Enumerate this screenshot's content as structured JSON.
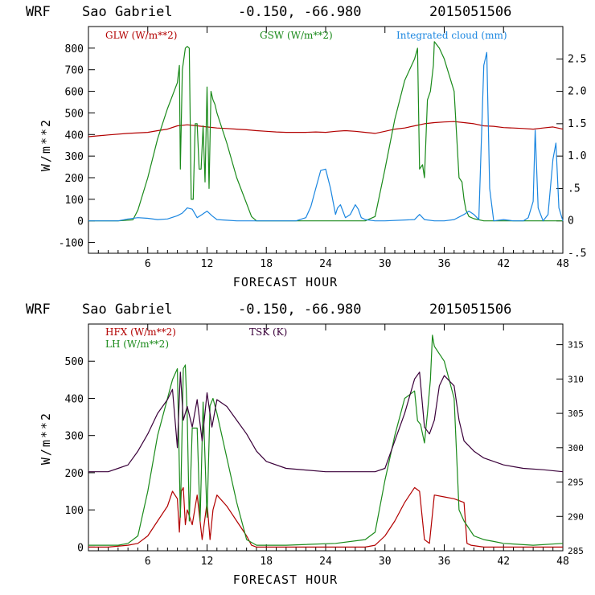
{
  "colors": {
    "red": "#b20000",
    "green": "#1a8a1a",
    "blue": "#1a86e0",
    "purple": "#3a003a",
    "axis": "#000000"
  },
  "chart_data": [
    {
      "type": "line",
      "header": {
        "model": "WRF",
        "location": "Sao Gabriel",
        "coords": "-0.150, -66.980",
        "run": "2015051506"
      },
      "xlabel": "FORECAST HOUR",
      "ylabel": "W/m**2",
      "xlim": [
        0,
        48
      ],
      "ylim": [
        -150,
        900
      ],
      "y2lim": [
        -0.5,
        3.0
      ],
      "xticks": [
        "6",
        "12",
        "18",
        "24",
        "30",
        "36",
        "42",
        "48"
      ],
      "yticks": [
        "-100",
        "0",
        "100",
        "200",
        "300",
        "400",
        "500",
        "600",
        "700",
        "800"
      ],
      "y2ticks": [
        "-.5",
        "0",
        ".5",
        "1.0",
        "1.5",
        "2.0",
        "2.5"
      ],
      "series": [
        {
          "name": "GLW (W/m**2)",
          "axis": "left",
          "color": "red",
          "x": [
            0,
            2,
            4,
            6,
            7,
            8,
            9,
            10,
            11,
            12,
            13,
            14,
            15,
            16,
            17,
            18,
            19,
            20,
            21,
            22,
            23,
            24,
            25,
            26,
            27,
            28,
            29,
            30,
            31,
            32,
            33,
            34,
            35,
            36,
            37,
            38,
            39,
            40,
            41,
            42,
            43,
            44,
            45,
            46,
            47,
            48
          ],
          "y": [
            390,
            398,
            405,
            410,
            418,
            425,
            440,
            445,
            440,
            435,
            430,
            428,
            425,
            422,
            418,
            415,
            412,
            410,
            410,
            410,
            412,
            410,
            415,
            418,
            415,
            410,
            405,
            415,
            425,
            430,
            440,
            450,
            455,
            458,
            460,
            455,
            450,
            440,
            438,
            432,
            430,
            428,
            425,
            430,
            435,
            425
          ]
        },
        {
          "name": "GSW (W/m**2)",
          "axis": "left",
          "color": "green",
          "x": [
            0,
            3,
            4.5,
            5,
            6,
            7,
            8,
            9,
            9.2,
            9.3,
            9.5,
            9.8,
            10,
            10.2,
            10.4,
            10.6,
            10.8,
            11,
            11.2,
            11.4,
            11.6,
            11.8,
            12,
            12.2,
            12.4,
            12.6,
            12.8,
            13,
            14,
            15,
            16,
            16.5,
            17,
            20,
            25,
            28,
            29,
            30,
            31,
            32,
            33,
            33.3,
            33.5,
            33.8,
            34,
            34.3,
            34.6,
            34.9,
            35,
            35.5,
            36,
            37,
            37.5,
            37.8,
            38,
            38.2,
            38.5,
            39,
            40,
            48
          ],
          "y": [
            0,
            0,
            5,
            50,
            200,
            380,
            520,
            640,
            720,
            240,
            700,
            800,
            808,
            800,
            100,
            100,
            450,
            450,
            240,
            240,
            440,
            180,
            620,
            150,
            600,
            560,
            540,
            500,
            360,
            200,
            80,
            20,
            0,
            0,
            0,
            0,
            20,
            240,
            470,
            650,
            750,
            800,
            240,
            260,
            200,
            560,
            600,
            720,
            830,
            800,
            750,
            600,
            200,
            180,
            100,
            50,
            20,
            10,
            0,
            0
          ]
        },
        {
          "name": "Integrated cloud (mm)",
          "axis": "right",
          "color": "blue",
          "x": [
            0,
            3,
            4,
            5,
            6,
            7,
            8,
            9,
            9.5,
            10,
            10.5,
            11,
            11.5,
            12,
            12.5,
            13,
            14,
            15,
            16,
            18,
            20,
            21,
            22,
            22.5,
            23,
            23.5,
            24,
            24.5,
            25,
            25.2,
            25.5,
            26,
            26.5,
            27,
            27.3,
            27.6,
            28,
            29,
            30,
            33,
            33.5,
            34,
            35,
            36,
            37,
            38,
            38.5,
            39,
            39.5,
            40,
            40.3,
            40.6,
            41,
            42,
            43,
            44,
            44.5,
            45,
            45.2,
            45.5,
            46,
            46.5,
            47,
            47.3,
            47.6,
            48
          ],
          "y": [
            0,
            0,
            0.03,
            0.05,
            0.04,
            0.02,
            0.03,
            0.08,
            0.12,
            0.2,
            0.18,
            0.05,
            0.1,
            0.15,
            0.08,
            0.02,
            0.01,
            0,
            0,
            0,
            0,
            0,
            0.05,
            0.22,
            0.5,
            0.78,
            0.8,
            0.5,
            0.1,
            0.2,
            0.25,
            0.05,
            0.1,
            0.25,
            0.18,
            0.05,
            0.02,
            0,
            0,
            0.02,
            0.1,
            0.02,
            0,
            0,
            0.02,
            0.1,
            0.15,
            0.1,
            0.02,
            2.4,
            2.6,
            0.5,
            0,
            0.02,
            0,
            0,
            0.05,
            0.3,
            1.4,
            0.2,
            0,
            0.1,
            0.95,
            1.2,
            0.2,
            0
          ]
        }
      ]
    },
    {
      "type": "line",
      "header": {
        "model": "WRF",
        "location": "Sao Gabriel",
        "coords": "-0.150, -66.980",
        "run": "2015051506"
      },
      "xlabel": "FORECAST HOUR",
      "ylabel": "W/m**2",
      "xlim": [
        0,
        48
      ],
      "ylim": [
        -10,
        600
      ],
      "y2lim": [
        285,
        318
      ],
      "xticks": [
        "6",
        "12",
        "18",
        "24",
        "30",
        "36",
        "42",
        "48"
      ],
      "yticks": [
        "0",
        "100",
        "200",
        "300",
        "400",
        "500"
      ],
      "y2ticks": [
        "285",
        "290",
        "295",
        "300",
        "305",
        "310",
        "315"
      ],
      "series": [
        {
          "name": "HFX (W/m**2)",
          "axis": "left",
          "color": "red",
          "x": [
            0,
            2,
            4,
            5,
            6,
            7,
            8,
            8.5,
            9,
            9.2,
            9.4,
            9.6,
            9.8,
            10,
            10.5,
            11,
            11.5,
            12,
            12.3,
            12.6,
            13,
            14,
            15,
            16,
            16.5,
            17,
            20,
            25,
            28,
            29,
            30,
            31,
            32,
            33,
            33.5,
            34,
            34.5,
            35,
            36,
            37,
            38,
            38.3,
            38.7,
            40,
            44,
            48
          ],
          "y": [
            0,
            0,
            5,
            10,
            30,
            70,
            110,
            150,
            130,
            40,
            150,
            160,
            60,
            100,
            60,
            140,
            20,
            120,
            20,
            100,
            140,
            110,
            70,
            30,
            5,
            0,
            0,
            0,
            0,
            5,
            30,
            70,
            120,
            160,
            150,
            20,
            10,
            140,
            135,
            130,
            120,
            10,
            5,
            0,
            0,
            0
          ]
        },
        {
          "name": "LH (W/m**2)",
          "axis": "left",
          "color": "green",
          "x": [
            0,
            3,
            4,
            5,
            6,
            7,
            8,
            8.5,
            9,
            9.3,
            9.6,
            9.8,
            10,
            10.2,
            10.5,
            11,
            11.3,
            11.6,
            12,
            12.3,
            12.6,
            13,
            14,
            15,
            16,
            17,
            20,
            25,
            28,
            29,
            30,
            31,
            32,
            33,
            33.3,
            33.6,
            34,
            34.3,
            34.6,
            34.8,
            35,
            36,
            37,
            37.5,
            38,
            39,
            40,
            41,
            42,
            45,
            48
          ],
          "y": [
            5,
            5,
            10,
            30,
            150,
            300,
            400,
            450,
            480,
            80,
            480,
            490,
            350,
            70,
            320,
            320,
            70,
            390,
            80,
            380,
            400,
            360,
            240,
            120,
            20,
            5,
            5,
            10,
            20,
            40,
            180,
            300,
            400,
            420,
            340,
            330,
            280,
            360,
            450,
            570,
            540,
            500,
            400,
            100,
            70,
            30,
            20,
            15,
            10,
            5,
            10
          ]
        },
        {
          "name": "TSK (K)",
          "axis": "right",
          "color": "purple",
          "x": [
            0,
            2,
            3,
            4,
            5,
            6,
            7,
            8,
            8.5,
            9,
            9.3,
            9.6,
            10,
            10.5,
            11,
            11.5,
            12,
            12.5,
            13,
            14,
            15,
            16,
            17,
            18,
            20,
            24,
            27,
            29,
            30,
            31,
            32,
            33,
            33.5,
            34,
            34.5,
            35,
            35.5,
            36,
            37,
            37.5,
            38,
            39,
            40,
            42,
            44,
            46,
            48
          ],
          "y": [
            296.5,
            296.5,
            297,
            297.5,
            299.5,
            302,
            305,
            307,
            308.5,
            300,
            311,
            304,
            306,
            303,
            307,
            301,
            308,
            303,
            307,
            306,
            304,
            302,
            299.5,
            298,
            297,
            296.5,
            296.5,
            296.5,
            297,
            301,
            305,
            310,
            311,
            303,
            302,
            304,
            309,
            310.5,
            309,
            304,
            301,
            299.5,
            298.5,
            297.5,
            297,
            296.8,
            296.5
          ]
        }
      ]
    }
  ]
}
